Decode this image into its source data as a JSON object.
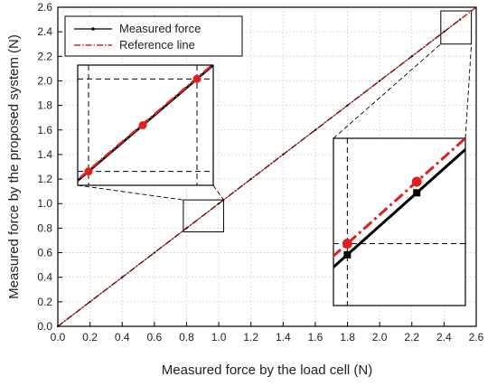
{
  "chart_data": {
    "type": "line",
    "xlabel": "Measured force by the load cell (N)",
    "ylabel": "Measured force by the proposed system (N)",
    "xlim": [
      0.0,
      2.6
    ],
    "ylim": [
      0.0,
      2.6
    ],
    "xticks": [
      "0.0",
      "0.2",
      "0.4",
      "0.6",
      "0.8",
      "1.0",
      "1.2",
      "1.4",
      "1.6",
      "1.8",
      "2.0",
      "2.2",
      "2.4",
      "2.6"
    ],
    "yticks": [
      "0.0",
      "0.2",
      "0.4",
      "0.6",
      "0.8",
      "1.0",
      "1.2",
      "1.4",
      "1.6",
      "1.8",
      "2.0",
      "2.2",
      "2.4",
      "2.6"
    ],
    "grid": true,
    "legend_position": "top-left",
    "series": [
      {
        "name": "Measured force",
        "style": "solid black line with small dot markers",
        "color": "#000000",
        "x": [
          0.0,
          0.2,
          0.4,
          0.6,
          0.8,
          1.0,
          1.2,
          1.4,
          1.6,
          1.8,
          2.0,
          2.2,
          2.4,
          2.5
        ],
        "y": [
          0.0,
          0.2,
          0.4,
          0.6,
          0.8,
          1.0,
          1.2,
          1.4,
          1.6,
          1.8,
          2.0,
          2.2,
          2.4,
          2.5
        ]
      },
      {
        "name": "Reference line",
        "style": "red dash-dot line with round markers",
        "color": "#e02020",
        "x": [
          0.0,
          2.6
        ],
        "y": [
          0.0,
          2.6
        ]
      }
    ],
    "insets": [
      {
        "zoom_of_x": [
          0.78,
          1.03
        ],
        "zoom_of_y": [
          0.77,
          1.03
        ],
        "position": "upper-left"
      },
      {
        "zoom_of_x": [
          2.38,
          2.57
        ],
        "zoom_of_y": [
          2.3,
          2.57
        ],
        "position": "right-middle"
      }
    ]
  }
}
